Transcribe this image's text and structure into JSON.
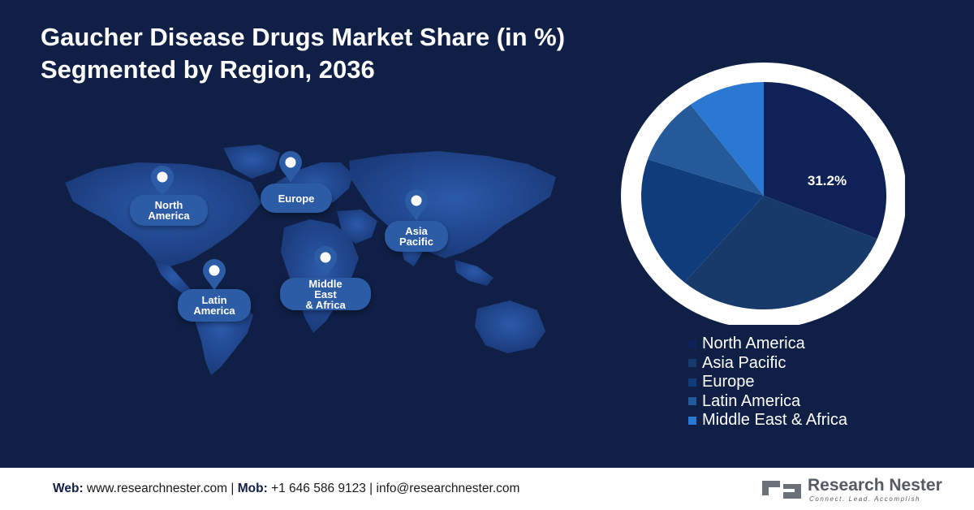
{
  "title": {
    "line1": "Gaucher Disease Drugs Market Share (in %)",
    "line2": "Segmented by Region, 2036"
  },
  "map": {
    "regions": [
      {
        "key": "north-america",
        "label": "North\nAmerica"
      },
      {
        "key": "europe",
        "label": "Europe"
      },
      {
        "key": "asia-pacific",
        "label": "Asia\nPacific"
      },
      {
        "key": "latin-america",
        "label": "Latin\nAmerica"
      },
      {
        "key": "mea",
        "label": "Middle\nEast\n& Africa"
      }
    ]
  },
  "chart_data": {
    "type": "pie",
    "title": "Gaucher Disease Drugs Market Share (in %) Segmented by Region, 2036",
    "series": [
      {
        "name": "North America",
        "value": 31.2,
        "color": "#0e2257"
      },
      {
        "name": "Asia Pacific",
        "value": 30.0,
        "color": "#173a6b"
      },
      {
        "name": "Europe",
        "value": 19.0,
        "color": "#103c7c"
      },
      {
        "name": "Latin America",
        "value": 9.6,
        "color": "#245a9a"
      },
      {
        "name": "Middle East & Africa",
        "value": 10.2,
        "color": "#2a78d2"
      }
    ],
    "data_labels": [
      "31.2%"
    ],
    "legend_placement": "bottom-right"
  },
  "footer": {
    "web_label": "Web:",
    "web_value": "www.researchnester.com",
    "sep1": "|",
    "mob_label": "Mob:",
    "mob_value": "+1 646 586 9123",
    "sep2": "|",
    "email": "info@researchnester.com",
    "brand": "Research Nester",
    "tagline": "Connect. Lead. Accomplish"
  }
}
